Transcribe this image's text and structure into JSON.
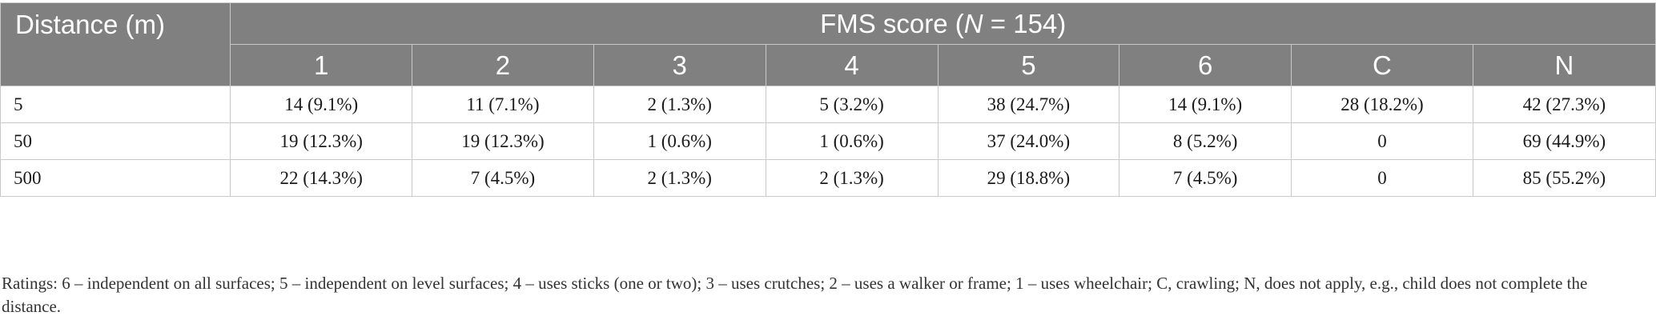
{
  "table": {
    "distance_header": "Distance (m)",
    "fms_header_prefix": "FMS score (",
    "fms_header_italic": "N",
    "fms_header_suffix": " = 154)",
    "columns": [
      "1",
      "2",
      "3",
      "4",
      "5",
      "6",
      "C",
      "N"
    ],
    "rows": [
      {
        "distance": "5",
        "cells": [
          "14 (9.1%)",
          "11 (7.1%)",
          "2 (1.3%)",
          "5 (3.2%)",
          "38 (24.7%)",
          "14 (9.1%)",
          "28 (18.2%)",
          "42 (27.3%)"
        ]
      },
      {
        "distance": "50",
        "cells": [
          "19 (12.3%)",
          "19 (12.3%)",
          "1 (0.6%)",
          "1 (0.6%)",
          "37 (24.0%)",
          "8 (5.2%)",
          "0",
          "69 (44.9%)"
        ]
      },
      {
        "distance": "500",
        "cells": [
          "22 (14.3%)",
          "7 (4.5%)",
          "2 (1.3%)",
          "2 (1.3%)",
          "29 (18.8%)",
          "7 (4.5%)",
          "0",
          "85 (55.2%)"
        ]
      }
    ]
  },
  "footnote": "Ratings: 6 – independent on all surfaces; 5 – independent on level surfaces; 4 – uses sticks (one or two); 3 – uses crutches; 2 – uses a walker or frame; 1 – uses wheelchair; C, crawling; N, does not apply, e.g., child does not complete the distance.",
  "colors": {
    "header_bg": "#808080",
    "header_text": "#ffffff",
    "grid": "#c9c9c9"
  }
}
